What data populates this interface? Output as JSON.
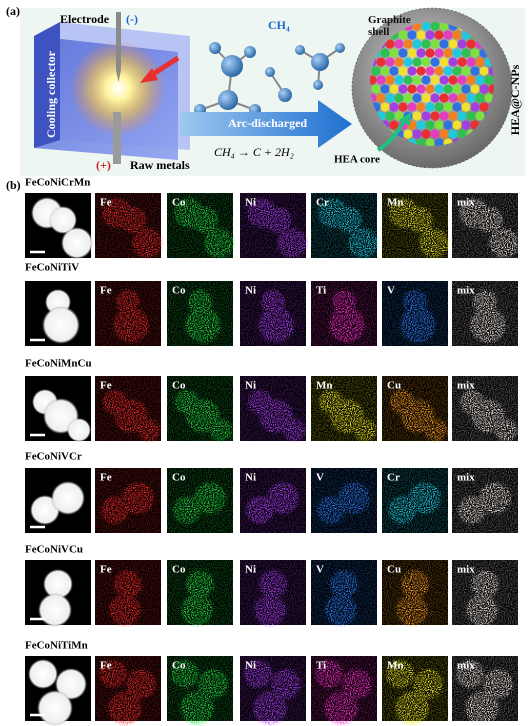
{
  "panel_a": {
    "label": "(a)",
    "electrode": "Electrode",
    "cathode": "(-)",
    "gas": "CH₄",
    "graphite_shell": "Graphite shell",
    "cooling_collector": "Cooling collector",
    "process": "Arc-discharged",
    "reaction": "CH₄ → C + 2H₂",
    "anode": "(+)",
    "raw_metals": "Raw metals",
    "hea_core": "HEA core",
    "product": "HEA@C-NPs"
  },
  "panel_b": {
    "label": "(b)",
    "rows": [
      {
        "name": "FeCoNiCrMn",
        "maps": [
          "Fe",
          "Co",
          "Ni",
          "Cr",
          "Mn",
          "mix"
        ]
      },
      {
        "name": "FeCoNiTiV",
        "maps": [
          "Fe",
          "Co",
          "Ni",
          "Ti",
          "V",
          "mix"
        ]
      },
      {
        "name": "FeCoNiMnCu",
        "maps": [
          "Fe",
          "Co",
          "Ni",
          "Mn",
          "Cu",
          "mix"
        ]
      },
      {
        "name": "FeCoNiVCr",
        "maps": [
          "Fe",
          "Co",
          "Ni",
          "V",
          "Cr",
          "mix"
        ]
      },
      {
        "name": "FeCoNiVCu",
        "maps": [
          "Fe",
          "Co",
          "Ni",
          "V",
          "Cu",
          "mix"
        ]
      },
      {
        "name": "FeCoNiTiMn",
        "maps": [
          "Fe",
          "Co",
          "Ni",
          "Ti",
          "Mn",
          "mix"
        ]
      }
    ]
  }
}
